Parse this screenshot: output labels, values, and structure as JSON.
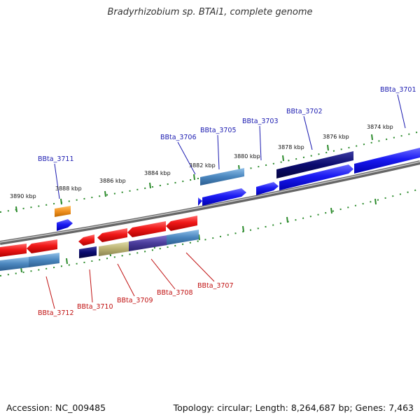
{
  "title": "Bradyrhizobium sp. BTAi1, complete genome",
  "footer": {
    "accession": "Accession: NC_009485",
    "summary": "Topology: circular; Length: 8,264,687 bp; Genes: 7,463"
  },
  "kbp_ticks": [
    "3890 kbp",
    "3888 kbp",
    "3886 kbp",
    "3884 kbp",
    "3882 kbp",
    "3880 kbp",
    "3878 kbp",
    "3876 kbp",
    "3874 kbp"
  ],
  "top_gene_labels": [
    "BBta_3711",
    "BBta_3706",
    "BBta_3705",
    "BBta_3703",
    "BBta_3702",
    "BBta_3701"
  ],
  "bottom_gene_labels": [
    "BBta_3712",
    "BBta_3710",
    "BBta_3709",
    "BBta_3708",
    "BBta_3707"
  ],
  "colors": {
    "red": "#e8121c",
    "blue": "#1818f0",
    "navy": "#0a0a70",
    "steel": "#4a86be",
    "olive": "#b8b070",
    "orange": "#f09020",
    "purple": "#4a3c9a",
    "tick_green": "#2a8a2a",
    "top_label": "#1a1ab0",
    "bottom_label": "#c01010",
    "backbone": "#888888"
  }
}
